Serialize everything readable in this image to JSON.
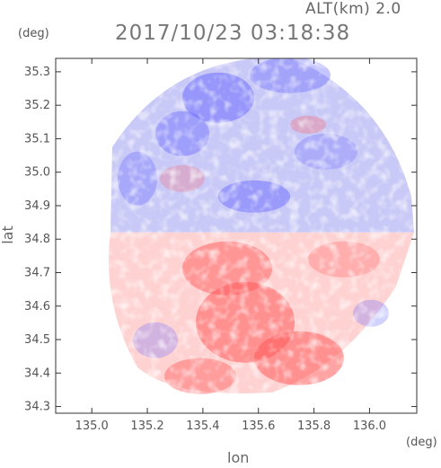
{
  "chart_data": {
    "type": "heatmap",
    "title": "2017/10/23 03:18:38",
    "altitude_label": "ALT(km)  2.0",
    "xlabel": "lon",
    "ylabel": "lat",
    "x_unit": "(deg)",
    "y_unit": "(deg)",
    "xlim": [
      134.87,
      136.17
    ],
    "ylim": [
      34.28,
      35.34
    ],
    "x_ticks": [
      "135.0",
      "135.2",
      "135.4",
      "135.6",
      "135.8",
      "136.0"
    ],
    "y_ticks": [
      "34.3",
      "34.4",
      "34.5",
      "34.6",
      "34.7",
      "34.8",
      "34.9",
      "35.0",
      "35.1",
      "35.2",
      "35.3"
    ],
    "radar_center": {
      "lon": 135.52,
      "lat": 34.82
    },
    "color_scale": {
      "negative": "#6b6bff",
      "zero": "#ffffff",
      "positive": "#ff5a5a"
    },
    "grid": false,
    "legend": "none"
  }
}
